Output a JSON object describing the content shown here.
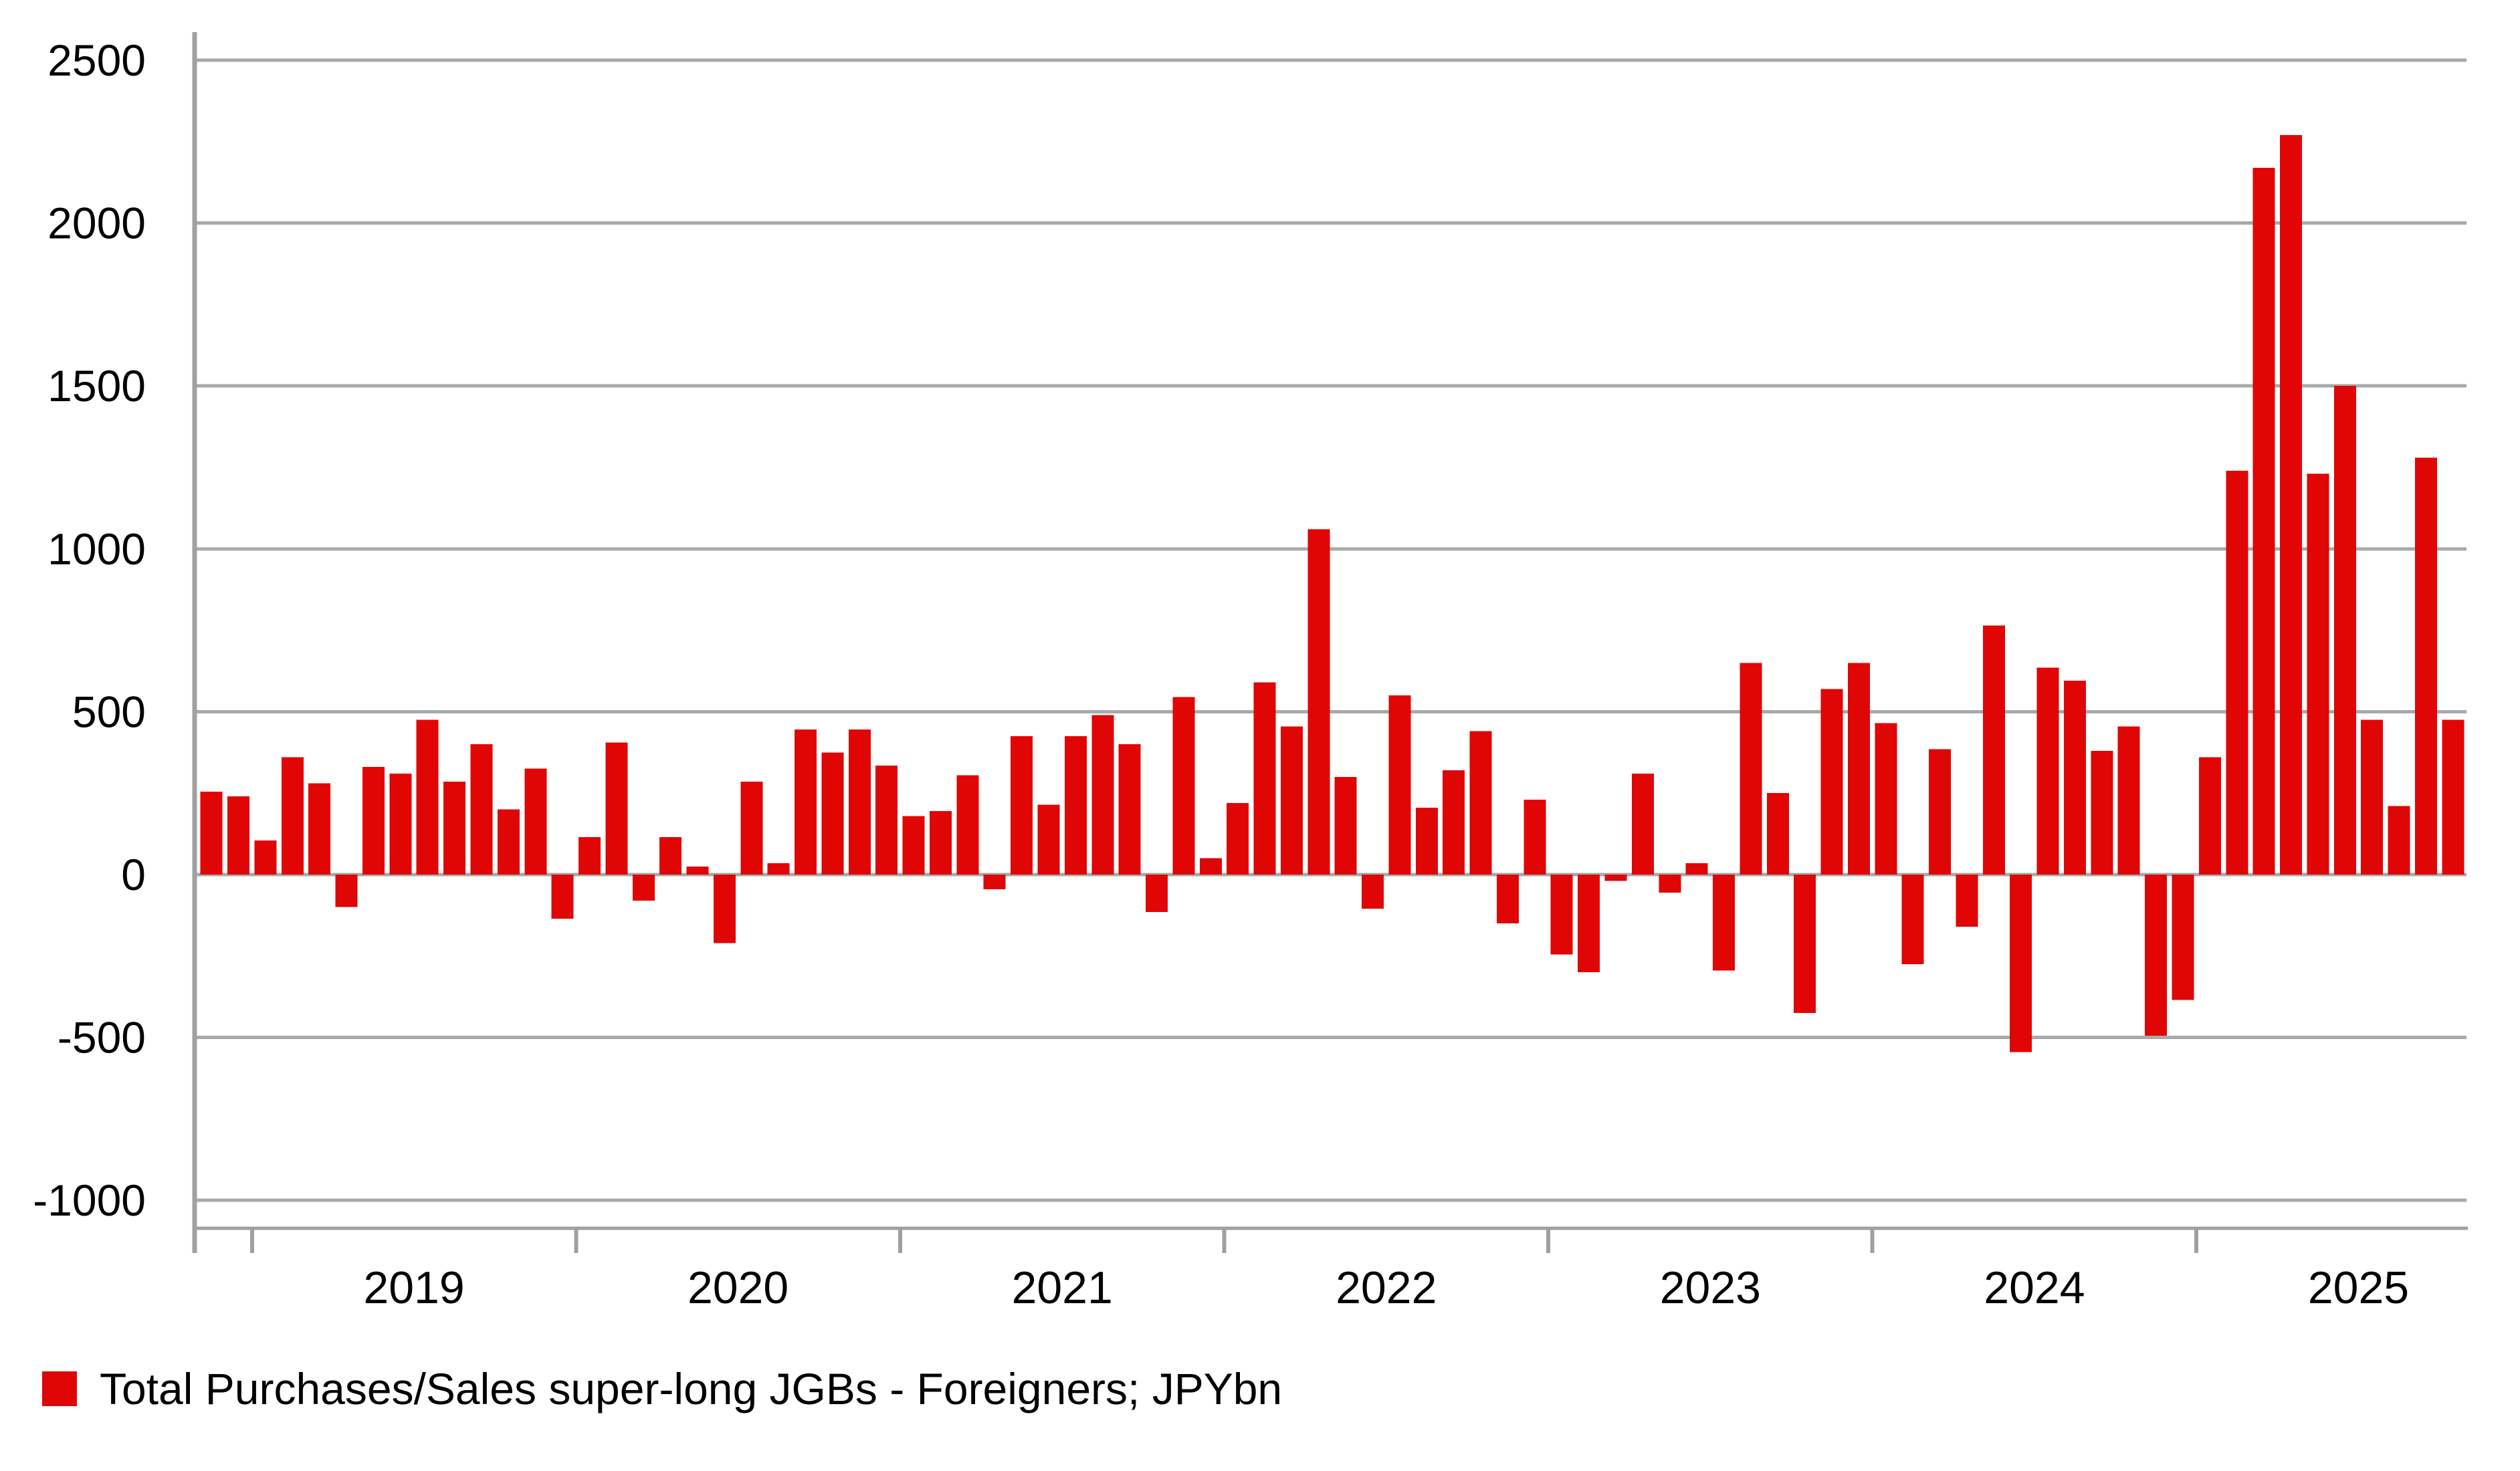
{
  "chart_data": {
    "type": "bar",
    "title": "",
    "legend": "Total Purchases/Sales super-long JGBs - Foreigners; JPYbn",
    "unit": "JPYbn",
    "categories": [
      "Nov 2018",
      "Dec 2018",
      "Jan 2019",
      "Feb 2019",
      "Mar 2019",
      "Apr 2019",
      "May 2019",
      "Jun 2019",
      "Jul 2019",
      "Aug 2019",
      "Sep 2019",
      "Oct 2019",
      "Nov 2019",
      "Dec 2019",
      "Jan 2020",
      "Feb 2020",
      "Mar 2020",
      "Apr 2020",
      "May 2020",
      "Jun 2020",
      "Jul 2020",
      "Aug 2020",
      "Sep 2020",
      "Oct 2020",
      "Nov 2020",
      "Dec 2020",
      "Jan 2021",
      "Feb 2021",
      "Mar 2021",
      "Apr 2021",
      "May 2021",
      "Jun 2021",
      "Jul 2021",
      "Aug 2021",
      "Sep 2021",
      "Oct 2021",
      "Nov 2021",
      "Dec 2021",
      "Jan 2022",
      "Feb 2022",
      "Mar 2022",
      "Apr 2022",
      "May 2022",
      "Jun 2022",
      "Jul 2022",
      "Aug 2022",
      "Sep 2022",
      "Oct 2022",
      "Nov 2022",
      "Dec 2022",
      "Jan 2023",
      "Feb 2023",
      "Mar 2023",
      "Apr 2023",
      "May 2023",
      "Jun 2023",
      "Jul 2023",
      "Aug 2023",
      "Sep 2023",
      "Oct 2023",
      "Nov 2023",
      "Dec 2023",
      "Jan 2024",
      "Feb 2024",
      "Mar 2024",
      "Apr 2024",
      "May 2024",
      "Jun 2024",
      "Jul 2024",
      "Aug 2024",
      "Sep 2024",
      "Oct 2024",
      "Nov 2024",
      "Dec 2024",
      "Jan 2025",
      "Feb 2025",
      "Mar 2025",
      "Apr 2025",
      "May 2025",
      "Jun 2025",
      "Jul 2025",
      "Aug 2025",
      "Sep 2025",
      "Oct 2025"
    ],
    "values": [
      255,
      240,
      105,
      360,
      280,
      -100,
      330,
      310,
      475,
      285,
      400,
      200,
      325,
      -135,
      115,
      405,
      -80,
      115,
      25,
      -210,
      285,
      35,
      445,
      375,
      445,
      335,
      180,
      195,
      305,
      -45,
      425,
      215,
      425,
      490,
      400,
      -115,
      545,
      50,
      220,
      590,
      455,
      1060,
      300,
      -105,
      550,
      205,
      320,
      440,
      -150,
      230,
      -245,
      -300,
      -20,
      310,
      -55,
      35,
      -295,
      650,
      250,
      -425,
      570,
      650,
      465,
      -275,
      385,
      -160,
      765,
      -545,
      635,
      595,
      380,
      455,
      -495,
      -385,
      360,
      1240,
      2170,
      2270,
      1230,
      1500,
      475,
      210,
      1280,
      475
    ],
    "y_gridlines": [
      2500,
      2000,
      1500,
      1000,
      500,
      0,
      -500,
      -1000
    ],
    "ylim": [
      -1080,
      2590
    ],
    "x_tick_years": [
      "2019",
      "2020",
      "2021",
      "2022",
      "2023",
      "2024",
      "2025"
    ],
    "grid": true,
    "legend_position": "bottom-left",
    "bar_color": "#e00606",
    "grid_color": "#a9a9a9",
    "axis_color": "#a0a0a0",
    "text_color": "#000000"
  }
}
